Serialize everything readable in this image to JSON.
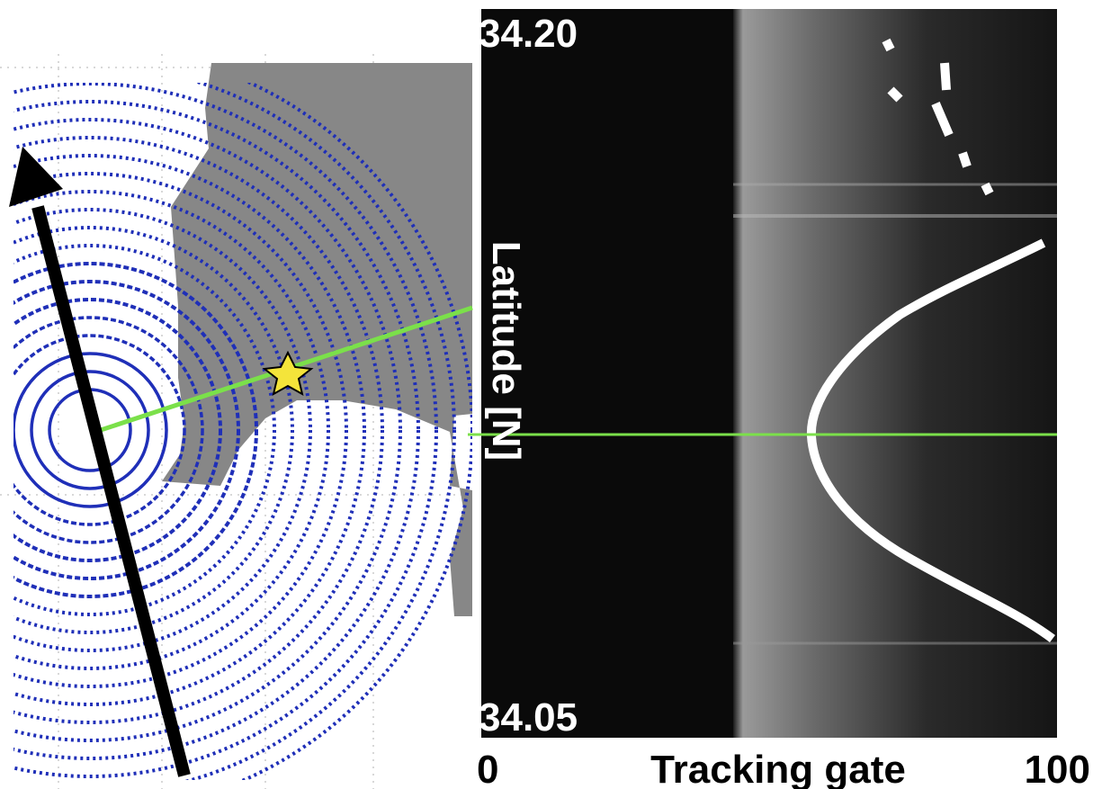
{
  "right_panel": {
    "y_label": "Latitude [N]",
    "y_ticks": [
      "34.20",
      "34.05"
    ],
    "x_label": "Tracking gate",
    "x_ticks": [
      "0",
      "100"
    ]
  }
}
